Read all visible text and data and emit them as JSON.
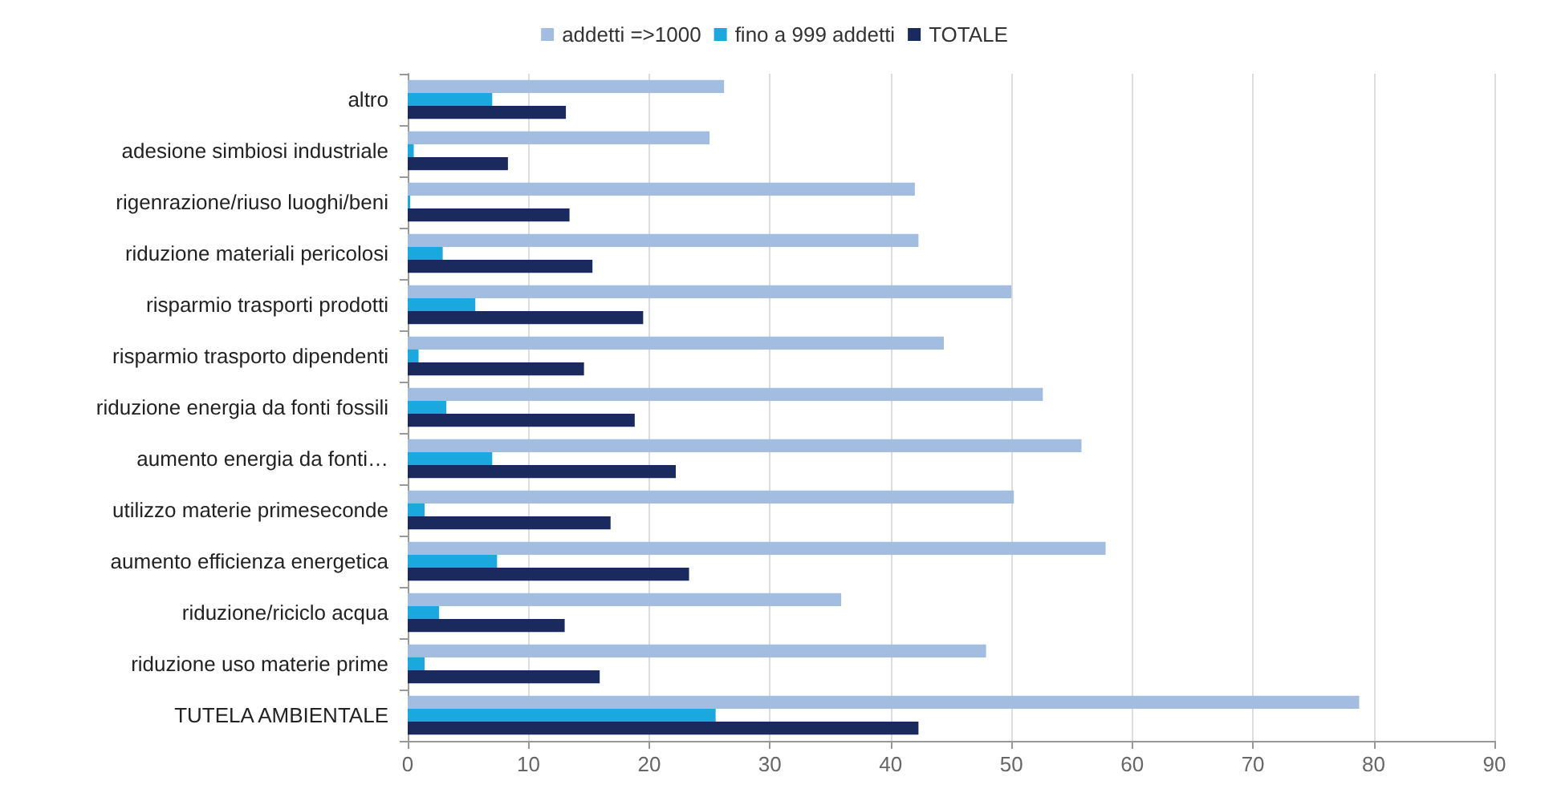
{
  "chart_data": {
    "type": "bar",
    "orientation": "horizontal",
    "categories": [
      "altro",
      "adesione simbiosi industriale",
      "rigenrazione/riuso luoghi/beni",
      "riduzione materiali pericolosi",
      "risparmio trasporti prodotti",
      "risparmio trasporto dipendenti",
      "riduzione energia da fonti fossili",
      "aumento energia da fonti…",
      "utilizzo materie primeseconde",
      "aumento efficienza energetica",
      "riduzione/riciclo acqua",
      "riduzione uso materie prime",
      "TUTELA AMBIENTALE"
    ],
    "series": [
      {
        "name": "addetti =>1000",
        "color": "#a3bde0",
        "values": [
          26.2,
          25.0,
          42.0,
          42.3,
          50.0,
          44.4,
          52.6,
          55.8,
          50.2,
          57.8,
          35.9,
          47.9,
          78.8
        ]
      },
      {
        "name": "fino a 999 addetti",
        "color": "#1ba8df",
        "values": [
          7.0,
          0.5,
          0.2,
          2.9,
          5.6,
          0.9,
          3.2,
          7.0,
          1.4,
          7.4,
          2.6,
          1.4,
          25.5
        ]
      },
      {
        "name": "TOTALE",
        "color": "#1b2a5e",
        "values": [
          13.1,
          8.3,
          13.4,
          15.3,
          19.5,
          14.6,
          18.8,
          22.2,
          16.8,
          23.3,
          13.0,
          15.9,
          42.3
        ]
      }
    ],
    "xlim": [
      0,
      90
    ],
    "xticks": [
      0,
      10,
      20,
      30,
      40,
      50,
      60,
      70,
      80,
      90
    ],
    "grid": "x",
    "legend": "top"
  }
}
